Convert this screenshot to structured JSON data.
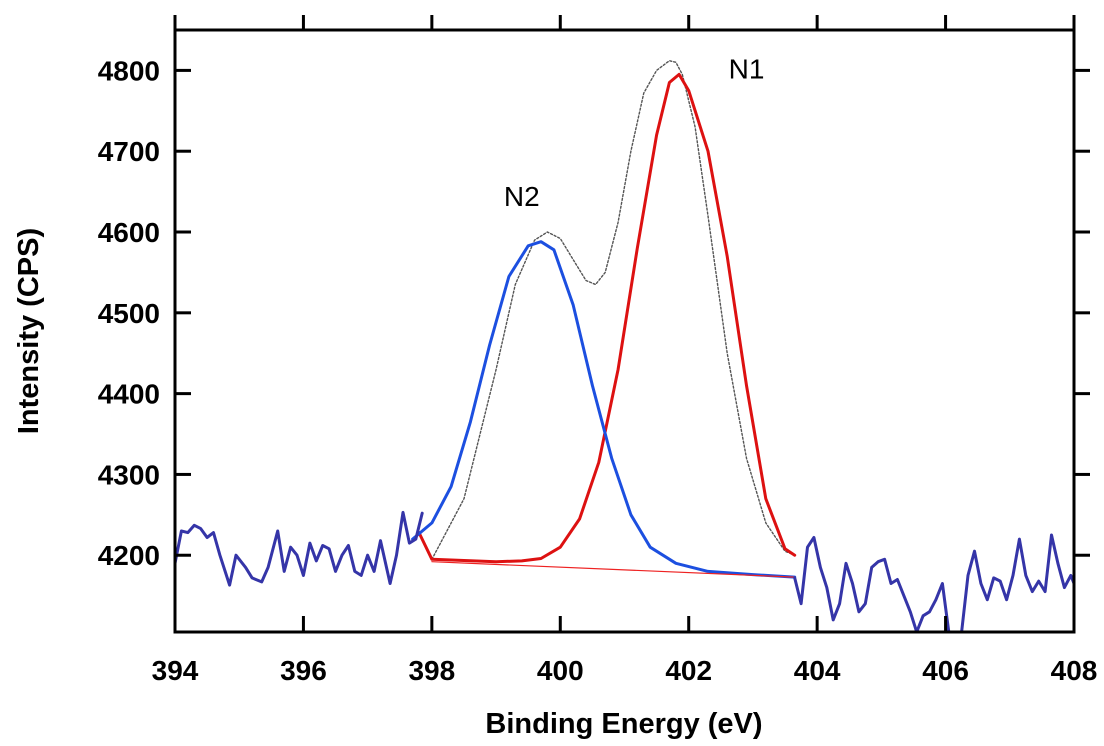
{
  "chart_data": {
    "type": "line",
    "title": "",
    "xlabel": "Binding Energy (eV)",
    "ylabel": "Intensity (CPS)",
    "xlim": [
      394,
      408
    ],
    "ylim": [
      4105,
      4850
    ],
    "xticks": [
      394,
      396,
      398,
      400,
      402,
      404,
      406,
      408
    ],
    "yticks": [
      4200,
      4300,
      4400,
      4500,
      4600,
      4700,
      4800
    ],
    "grid": false,
    "legend": "none",
    "annotations": [
      {
        "text": "N1",
        "x": 402.9,
        "y": 4790
      },
      {
        "text": "N2",
        "x": 399.4,
        "y": 4632
      }
    ],
    "series": [
      {
        "key": "envelope",
        "color": "#555555",
        "dashed": true,
        "x": [
          398.0,
          398.5,
          399.0,
          399.3,
          399.6,
          399.8,
          400.0,
          400.2,
          400.4,
          400.55,
          400.7,
          400.9,
          401.1,
          401.3,
          401.5,
          401.7,
          401.8,
          401.9,
          402.1,
          402.3,
          402.6,
          402.9,
          403.2,
          403.5,
          403.65
        ],
        "values": [
          4195,
          4270,
          4430,
          4535,
          4590,
          4600,
          4592,
          4566,
          4540,
          4535,
          4550,
          4612,
          4700,
          4772,
          4800,
          4812,
          4810,
          4795,
          4730,
          4620,
          4450,
          4320,
          4240,
          4205,
          4200
        ]
      },
      {
        "key": "n1-fit",
        "color": "#dd1111",
        "dashed": false,
        "x": [
          397.8,
          398.0,
          399.0,
          399.4,
          399.7,
          400.0,
          400.3,
          400.6,
          400.9,
          401.2,
          401.5,
          401.7,
          401.85,
          402.0,
          402.3,
          402.6,
          402.9,
          403.2,
          403.5,
          403.65
        ],
        "values": [
          4228,
          4195,
          4192,
          4193,
          4196,
          4210,
          4245,
          4315,
          4430,
          4580,
          4720,
          4785,
          4795,
          4775,
          4700,
          4570,
          4410,
          4270,
          4208,
          4200
        ]
      },
      {
        "key": "n2-fit",
        "color": "#1c4fe0",
        "dashed": false,
        "x": [
          397.7,
          398.0,
          398.3,
          398.6,
          398.9,
          399.2,
          399.5,
          399.7,
          399.9,
          400.2,
          400.5,
          400.8,
          401.1,
          401.4,
          401.8,
          402.3,
          403.0,
          403.65
        ],
        "values": [
          4220,
          4240,
          4285,
          4365,
          4460,
          4545,
          4583,
          4588,
          4578,
          4510,
          4410,
          4320,
          4250,
          4210,
          4190,
          4180,
          4176,
          4173
        ]
      },
      {
        "key": "baseline",
        "color": "#ee2222",
        "dashed": false,
        "x": [
          398.0,
          403.65
        ],
        "values": [
          4192,
          4173
        ]
      },
      {
        "key": "raw-data",
        "color": "#3535a8",
        "dashed": false,
        "x": [
          394.0,
          394.1,
          394.2,
          394.3,
          394.4,
          394.5,
          394.6,
          394.7,
          394.85,
          394.95,
          395.1,
          395.2,
          395.35,
          395.45,
          395.6,
          395.7,
          395.8,
          395.9,
          396.0,
          396.1,
          396.2,
          396.3,
          396.4,
          396.5,
          396.6,
          396.7,
          396.8,
          396.9,
          397.0,
          397.1,
          397.2,
          397.35,
          397.45,
          397.55,
          397.65,
          397.75,
          397.85
        ],
        "values": [
          4190,
          4230,
          4228,
          4237,
          4233,
          4222,
          4228,
          4200,
          4163,
          4200,
          4185,
          4172,
          4167,
          4185,
          4230,
          4180,
          4210,
          4200,
          4175,
          4215,
          4193,
          4212,
          4208,
          4180,
          4200,
          4212,
          4180,
          4175,
          4200,
          4180,
          4218,
          4165,
          4200,
          4253,
          4215,
          4220,
          4252
        ]
      },
      {
        "key": "raw-data-right",
        "color": "#3535a8",
        "dashed": false,
        "x": [
          403.65,
          403.75,
          403.85,
          403.95,
          404.05,
          404.15,
          404.25,
          404.35,
          404.45,
          404.55,
          404.65,
          404.75,
          404.85,
          404.95,
          405.05,
          405.15,
          405.25,
          405.35,
          405.45,
          405.55,
          405.65,
          405.75,
          405.85,
          405.95,
          406.05,
          406.15,
          406.25,
          406.35,
          406.45,
          406.55,
          406.65,
          406.75,
          406.85,
          406.95,
          407.05,
          407.15,
          407.25,
          407.35,
          407.45,
          407.55,
          407.65,
          407.75,
          407.85,
          407.95,
          408.0
        ],
        "values": [
          4172,
          4140,
          4210,
          4222,
          4185,
          4160,
          4120,
          4140,
          4190,
          4165,
          4130,
          4140,
          4185,
          4192,
          4195,
          4165,
          4170,
          4150,
          4130,
          4105,
          4125,
          4130,
          4145,
          4165,
          4105,
          4103,
          4105,
          4175,
          4205,
          4165,
          4145,
          4172,
          4168,
          4145,
          4175,
          4220,
          4175,
          4155,
          4168,
          4155,
          4225,
          4190,
          4160,
          4175,
          4165
        ]
      }
    ]
  }
}
